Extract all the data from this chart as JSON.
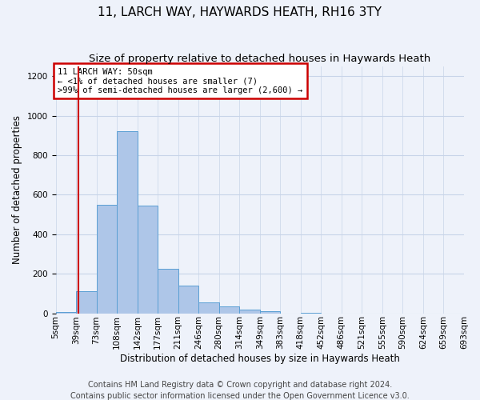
{
  "title": "11, LARCH WAY, HAYWARDS HEATH, RH16 3TY",
  "subtitle": "Size of property relative to detached houses in Haywards Heath",
  "xlabel": "Distribution of detached houses by size in Haywards Heath",
  "ylabel": "Number of detached properties",
  "footer_line1": "Contains HM Land Registry data © Crown copyright and database right 2024.",
  "footer_line2": "Contains public sector information licensed under the Open Government Licence v3.0.",
  "annotation_title": "11 LARCH WAY: 50sqm",
  "annotation_line2": "← <1% of detached houses are smaller (7)",
  "annotation_line3": ">99% of semi-detached houses are larger (2,600) →",
  "property_size_sqm": 50,
  "bin_labels": [
    "5sqm",
    "39sqm",
    "73sqm",
    "108sqm",
    "142sqm",
    "177sqm",
    "211sqm",
    "246sqm",
    "280sqm",
    "314sqm",
    "349sqm",
    "383sqm",
    "418sqm",
    "452sqm",
    "486sqm",
    "521sqm",
    "555sqm",
    "590sqm",
    "624sqm",
    "659sqm",
    "693sqm"
  ],
  "bar_heights": [
    7,
    110,
    550,
    920,
    545,
    225,
    140,
    55,
    35,
    20,
    10,
    0,
    3,
    0,
    0,
    0,
    0,
    0,
    0,
    0
  ],
  "bar_color": "#aec6e8",
  "bar_edge_color": "#5a9fd4",
  "marker_line_color": "#cc0000",
  "marker_bar_index": 1,
  "annotation_box_edge_color": "#cc0000",
  "annotation_box_face_color": "#ffffff",
  "ylim": [
    0,
    1250
  ],
  "yticks": [
    0,
    200,
    400,
    600,
    800,
    1000,
    1200
  ],
  "grid_color": "#c8d4e8",
  "background_color": "#eef2fa",
  "title_fontsize": 11,
  "subtitle_fontsize": 9.5,
  "label_fontsize": 8.5,
  "tick_fontsize": 7.5,
  "footer_fontsize": 7
}
